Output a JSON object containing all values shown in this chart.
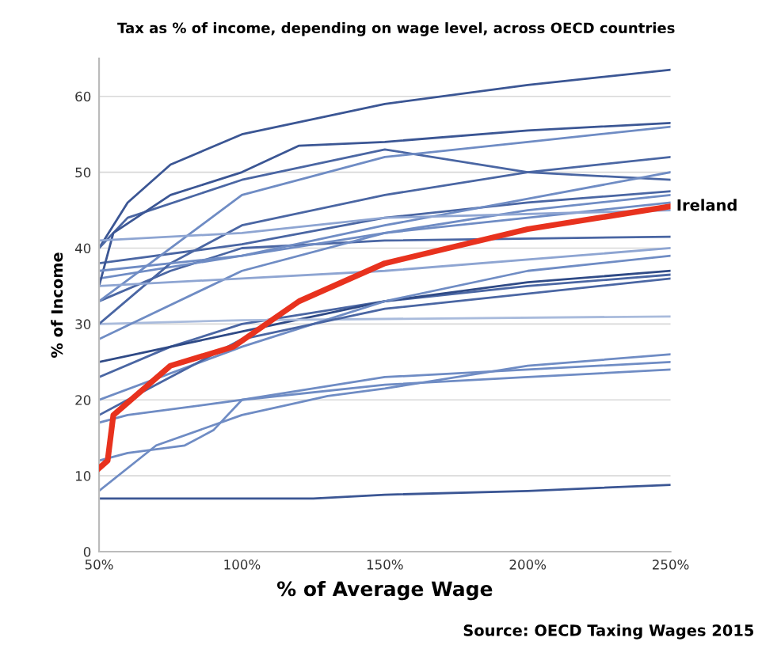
{
  "chart_data": {
    "type": "line",
    "title": "Tax as % of income, depending on wage level, across OECD countries",
    "xlabel": "% of Average Wage",
    "ylabel": "% of Income",
    "annotations": [
      "Source: OECD Taxing Wages 2015"
    ],
    "xlim": [
      50,
      250
    ],
    "ylim": [
      0,
      65
    ],
    "xticks": [
      {
        "value": 50,
        "label": "50%"
      },
      {
        "value": 100,
        "label": "100%"
      },
      {
        "value": 150,
        "label": "150%"
      },
      {
        "value": 200,
        "label": "200%"
      },
      {
        "value": 250,
        "label": "250%"
      }
    ],
    "yticks": [
      0,
      10,
      20,
      30,
      40,
      50,
      60
    ],
    "grid": "y",
    "legend": false,
    "marker": "none",
    "line_style": "solid",
    "series": [
      {
        "color": "#3b5694",
        "x": [
          50,
          60,
          75,
          100,
          150,
          200,
          250
        ],
        "values": [
          40,
          46,
          51,
          55,
          59,
          61.5,
          63.5
        ]
      },
      {
        "color": "#3b5694",
        "x": [
          50,
          100,
          125,
          150,
          200,
          250
        ],
        "values": [
          7,
          7,
          7,
          7.5,
          8,
          8.8
        ]
      },
      {
        "color": "#6f8cc4",
        "x": [
          50,
          70,
          100,
          130,
          150,
          200,
          250
        ],
        "values": [
          8,
          14,
          18,
          20.5,
          21.5,
          24.5,
          26
        ]
      },
      {
        "color": "#6f8cc4",
        "x": [
          50,
          60,
          80,
          90,
          100,
          150,
          250
        ],
        "values": [
          12,
          13,
          14,
          16,
          20,
          23,
          25
        ]
      },
      {
        "color": "#6f8cc4",
        "x": [
          50,
          60,
          100,
          150,
          200,
          250
        ],
        "values": [
          17,
          18,
          20,
          22,
          23,
          24
        ]
      },
      {
        "color": "#4a66a3",
        "x": [
          50,
          75,
          100,
          150,
          200,
          250
        ],
        "values": [
          23,
          27,
          30,
          33,
          35,
          36.5
        ]
      },
      {
        "color": "#2f4a86",
        "x": [
          50,
          100,
          150,
          200,
          250
        ],
        "values": [
          25,
          29,
          33,
          35.5,
          37
        ]
      },
      {
        "color": "#a9bbdc",
        "x": [
          50,
          100,
          250
        ],
        "values": [
          30,
          30.5,
          31
        ]
      },
      {
        "color": "#4a66a3",
        "x": [
          50,
          75,
          100,
          150,
          250
        ],
        "values": [
          33,
          37,
          40,
          41,
          41.5
        ]
      },
      {
        "color": "#6f8cc4",
        "x": [
          50,
          100,
          150,
          200,
          250
        ],
        "values": [
          36,
          39,
          42,
          44,
          46
        ]
      },
      {
        "color": "#4a66a3",
        "x": [
          50,
          100,
          150,
          200,
          250
        ],
        "values": [
          38,
          40.5,
          44,
          46,
          47.5
        ]
      },
      {
        "color": "#4a66a3",
        "x": [
          50,
          60,
          100,
          150,
          200,
          250
        ],
        "values": [
          40,
          44,
          49,
          53,
          50,
          49
        ]
      },
      {
        "color": "#3b5694",
        "x": [
          50,
          55,
          75,
          100,
          120,
          150,
          200,
          250
        ],
        "values": [
          35,
          42,
          47,
          50,
          53.5,
          54,
          55.5,
          56.5
        ]
      },
      {
        "color": "#6f8cc4",
        "x": [
          50,
          100,
          150,
          200,
          250
        ],
        "values": [
          33,
          47,
          52,
          54,
          56
        ]
      },
      {
        "color": "#4a66a3",
        "x": [
          50,
          75,
          100,
          150,
          200,
          250
        ],
        "values": [
          30,
          38,
          43,
          47,
          50,
          52
        ]
      },
      {
        "color": "#6f8cc4",
        "x": [
          50,
          100,
          150,
          200,
          250
        ],
        "values": [
          28,
          37,
          42,
          45,
          47
        ]
      },
      {
        "color": "#6f8cc4",
        "x": [
          50,
          100,
          150,
          200,
          250
        ],
        "values": [
          20,
          27,
          33,
          37,
          39
        ]
      },
      {
        "color": "#8ea5d2",
        "x": [
          50,
          100,
          150,
          250
        ],
        "values": [
          35,
          36,
          37,
          40
        ]
      },
      {
        "color": "#6f8cc4",
        "x": [
          50,
          100,
          150,
          250
        ],
        "values": [
          37,
          39,
          43,
          50
        ]
      },
      {
        "color": "#4a66a3",
        "x": [
          50,
          70,
          100,
          150,
          250
        ],
        "values": [
          18,
          22,
          28,
          32,
          36
        ]
      },
      {
        "color": "#8ea5d2",
        "x": [
          50,
          100,
          150,
          250
        ],
        "values": [
          41,
          42,
          44,
          45
        ]
      },
      {
        "name": "Ireland",
        "color": "#e8321e",
        "x": [
          50,
          53,
          55,
          75,
          97,
          120,
          150,
          200,
          250
        ],
        "values": [
          11,
          12,
          18,
          24.5,
          27,
          33,
          38,
          42.5,
          45.5
        ]
      }
    ]
  }
}
